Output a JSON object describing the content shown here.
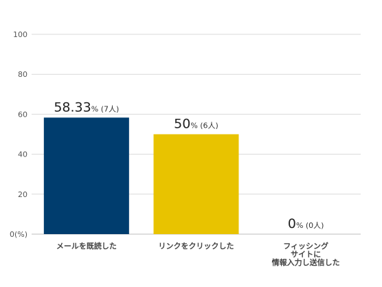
{
  "chart_data": {
    "type": "bar",
    "categories": [
      [
        "メールを既読した"
      ],
      [
        "リンクをクリックした"
      ],
      [
        "フィッシング",
        "サイトに",
        "情報入力し送信した"
      ]
    ],
    "values": [
      58.33,
      50,
      0
    ],
    "data_labels": [
      {
        "value": "58.33",
        "unit": "%",
        "count": "(7人)"
      },
      {
        "value": "50",
        "unit": "%",
        "count": "(6人)"
      },
      {
        "value": "0",
        "unit": "%",
        "count": "(0人)"
      }
    ],
    "colors": [
      "#003d6e",
      "#e8c300",
      "#4d7ebf"
    ],
    "yticks": [
      "0(%)",
      "20",
      "40",
      "60",
      "80",
      "100"
    ],
    "ytick_values": [
      0,
      20,
      40,
      60,
      80,
      100
    ],
    "ylim": [
      0,
      100
    ],
    "grid": true,
    "title": "",
    "xlabel": "",
    "ylabel": ""
  }
}
